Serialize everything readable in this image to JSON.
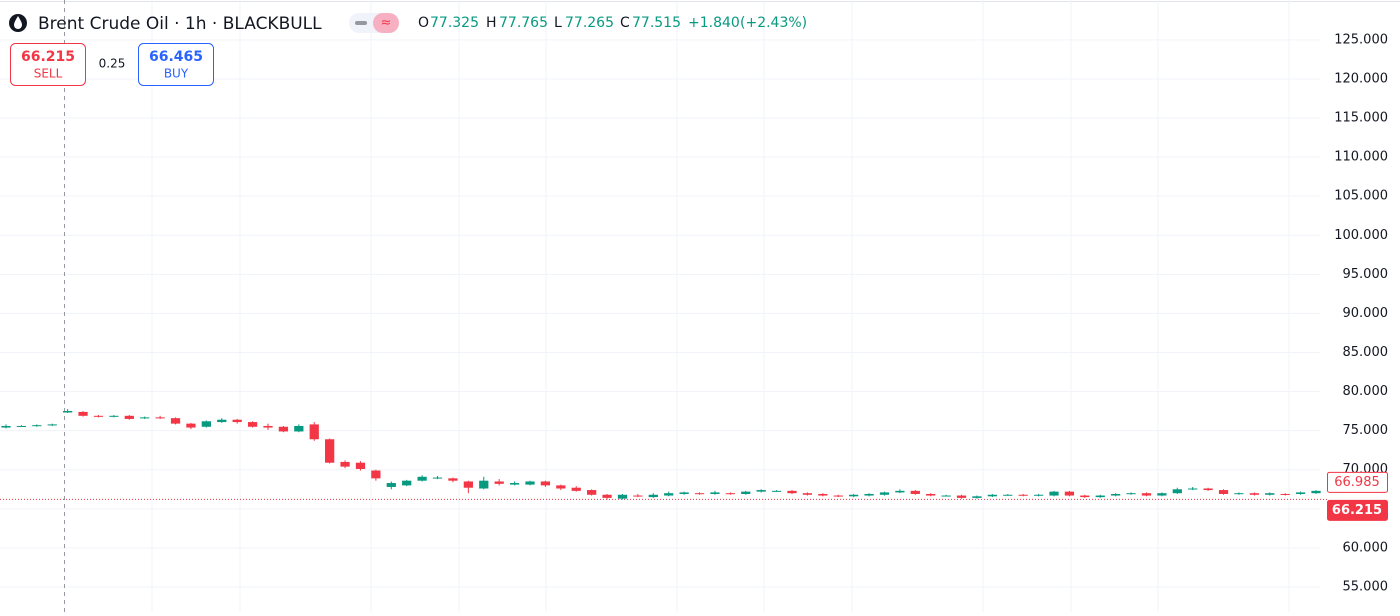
{
  "chart_data": {
    "type": "candlestick",
    "title": "Brent Crude Oil · 1h · BLACKBULL",
    "ohlc_labels": [
      "O",
      "H",
      "L",
      "C"
    ],
    "change": "+1.840",
    "change_pct": "(+2.43%)",
    "up_color": "#089981",
    "down_color": "#f23645",
    "open": [
      75.4,
      75.6,
      75.6,
      75.7,
      77.325,
      77.4,
      76.9,
      76.8,
      76.9,
      76.6,
      76.7,
      76.6,
      75.9,
      75.5,
      76.1,
      76.4,
      76.1,
      75.6,
      75.5,
      74.9,
      75.8,
      73.9,
      71.0,
      70.9,
      69.9,
      67.8,
      68.0,
      68.6,
      69.0,
      68.9,
      68.5,
      67.6,
      68.5,
      68.1,
      68.1,
      68.5,
      68.0,
      67.7,
      67.4,
      66.8,
      66.3,
      66.7,
      66.5,
      66.7,
      66.9,
      67.0,
      66.9,
      67.0,
      66.9,
      67.2,
      67.3,
      67.3,
      67.0,
      66.9,
      66.7,
      66.6,
      66.7,
      66.8,
      67.1,
      67.3,
      66.9,
      66.7,
      66.7,
      66.4,
      66.6,
      66.8,
      66.8,
      66.7,
      66.7,
      67.2,
      66.7,
      66.5,
      66.7,
      66.9,
      67.0,
      66.7,
      67.0,
      67.5,
      67.6,
      67.4,
      66.9,
      67.0,
      66.8,
      66.9,
      66.9,
      67.0
    ],
    "high": [
      75.8,
      75.7,
      75.8,
      75.9,
      77.765,
      77.5,
      77.0,
      77.0,
      77.0,
      76.8,
      76.9,
      76.7,
      76.0,
      76.3,
      76.6,
      76.5,
      76.2,
      75.9,
      75.6,
      75.8,
      76.1,
      74.0,
      71.2,
      71.1,
      70.0,
      68.5,
      68.7,
      69.3,
      69.2,
      69.0,
      68.6,
      69.1,
      68.8,
      68.5,
      68.6,
      68.6,
      68.1,
      67.9,
      67.5,
      66.9,
      66.9,
      66.9,
      67.0,
      67.2,
      67.2,
      67.1,
      67.3,
      67.1,
      67.3,
      67.5,
      67.4,
      67.4,
      67.1,
      67.0,
      66.8,
      66.9,
      67.0,
      67.2,
      67.5,
      67.4,
      67.0,
      66.8,
      66.8,
      66.7,
      66.9,
      66.9,
      66.9,
      66.9,
      67.3,
      67.3,
      66.8,
      66.8,
      67.0,
      67.1,
      67.1,
      67.1,
      67.7,
      67.8,
      67.7,
      67.5,
      67.1,
      67.1,
      67.1,
      67.0,
      67.2,
      67.4
    ],
    "low": [
      75.3,
      75.5,
      75.5,
      75.6,
      77.265,
      76.8,
      76.7,
      76.7,
      76.4,
      76.5,
      76.5,
      75.8,
      75.2,
      75.4,
      76.0,
      75.9,
      75.4,
      75.1,
      74.8,
      74.8,
      73.7,
      70.8,
      70.2,
      69.9,
      68.6,
      67.5,
      67.9,
      68.5,
      68.8,
      68.4,
      67.0,
      67.5,
      68.0,
      68.0,
      68.0,
      67.8,
      67.4,
      67.2,
      66.7,
      66.2,
      66.2,
      66.5,
      66.4,
      66.6,
      66.8,
      66.8,
      66.8,
      66.8,
      66.8,
      67.1,
      67.2,
      66.9,
      66.7,
      66.6,
      66.5,
      66.5,
      66.6,
      66.7,
      67.0,
      66.8,
      66.6,
      66.6,
      66.3,
      66.3,
      66.5,
      66.7,
      66.6,
      66.6,
      66.6,
      66.6,
      66.4,
      66.4,
      66.6,
      66.8,
      66.6,
      66.6,
      66.9,
      67.4,
      67.3,
      66.8,
      66.8,
      66.7,
      66.7,
      66.7,
      66.8,
      66.9
    ],
    "close": [
      75.6,
      75.6,
      75.7,
      75.8,
      77.515,
      76.9,
      76.8,
      76.9,
      76.5,
      76.7,
      76.6,
      75.9,
      75.4,
      76.2,
      76.4,
      76.1,
      75.5,
      75.4,
      74.9,
      75.6,
      73.9,
      70.9,
      70.4,
      70.1,
      68.9,
      68.3,
      68.6,
      69.1,
      69.0,
      68.6,
      67.7,
      68.6,
      68.2,
      68.3,
      68.5,
      68.0,
      67.6,
      67.3,
      66.8,
      66.4,
      66.8,
      66.6,
      66.8,
      67.0,
      67.1,
      66.9,
      67.1,
      66.9,
      67.2,
      67.4,
      67.3,
      67.0,
      66.8,
      66.7,
      66.6,
      66.8,
      66.9,
      67.1,
      67.3,
      66.9,
      66.7,
      66.7,
      66.4,
      66.6,
      66.8,
      66.8,
      66.7,
      66.8,
      67.2,
      66.7,
      66.5,
      66.7,
      66.9,
      67.0,
      66.7,
      67.0,
      67.5,
      67.6,
      67.4,
      66.9,
      67.0,
      66.8,
      67.0,
      66.8,
      67.1,
      67.3
    ],
    "ylim": [
      51.8,
      130.1
    ],
    "yticks": [
      {
        "value": 55,
        "label": "55.000"
      },
      {
        "value": 60,
        "label": "60.000"
      },
      {
        "value": 65,
        "label": "65.000"
      },
      {
        "value": 70,
        "label": "70.000"
      },
      {
        "value": 75,
        "label": "75.000"
      },
      {
        "value": 80,
        "label": "80.000"
      },
      {
        "value": 85,
        "label": "85.000"
      },
      {
        "value": 90,
        "label": "90.000"
      },
      {
        "value": 95,
        "label": "95.000"
      },
      {
        "value": 100,
        "label": "100.000"
      },
      {
        "value": 105,
        "label": "105.000"
      },
      {
        "value": 110,
        "label": "110.000"
      },
      {
        "value": 115,
        "label": "115.000"
      },
      {
        "value": 120,
        "label": "120.000"
      },
      {
        "value": 125,
        "label": "125.000"
      }
    ],
    "grid": true,
    "price_tags": [
      66.985,
      66.215
    ],
    "sell": {
      "price": 66.215,
      "label": "SELL"
    },
    "spread": 0.25,
    "buy": {
      "price": 66.465,
      "label": "BUY"
    }
  }
}
